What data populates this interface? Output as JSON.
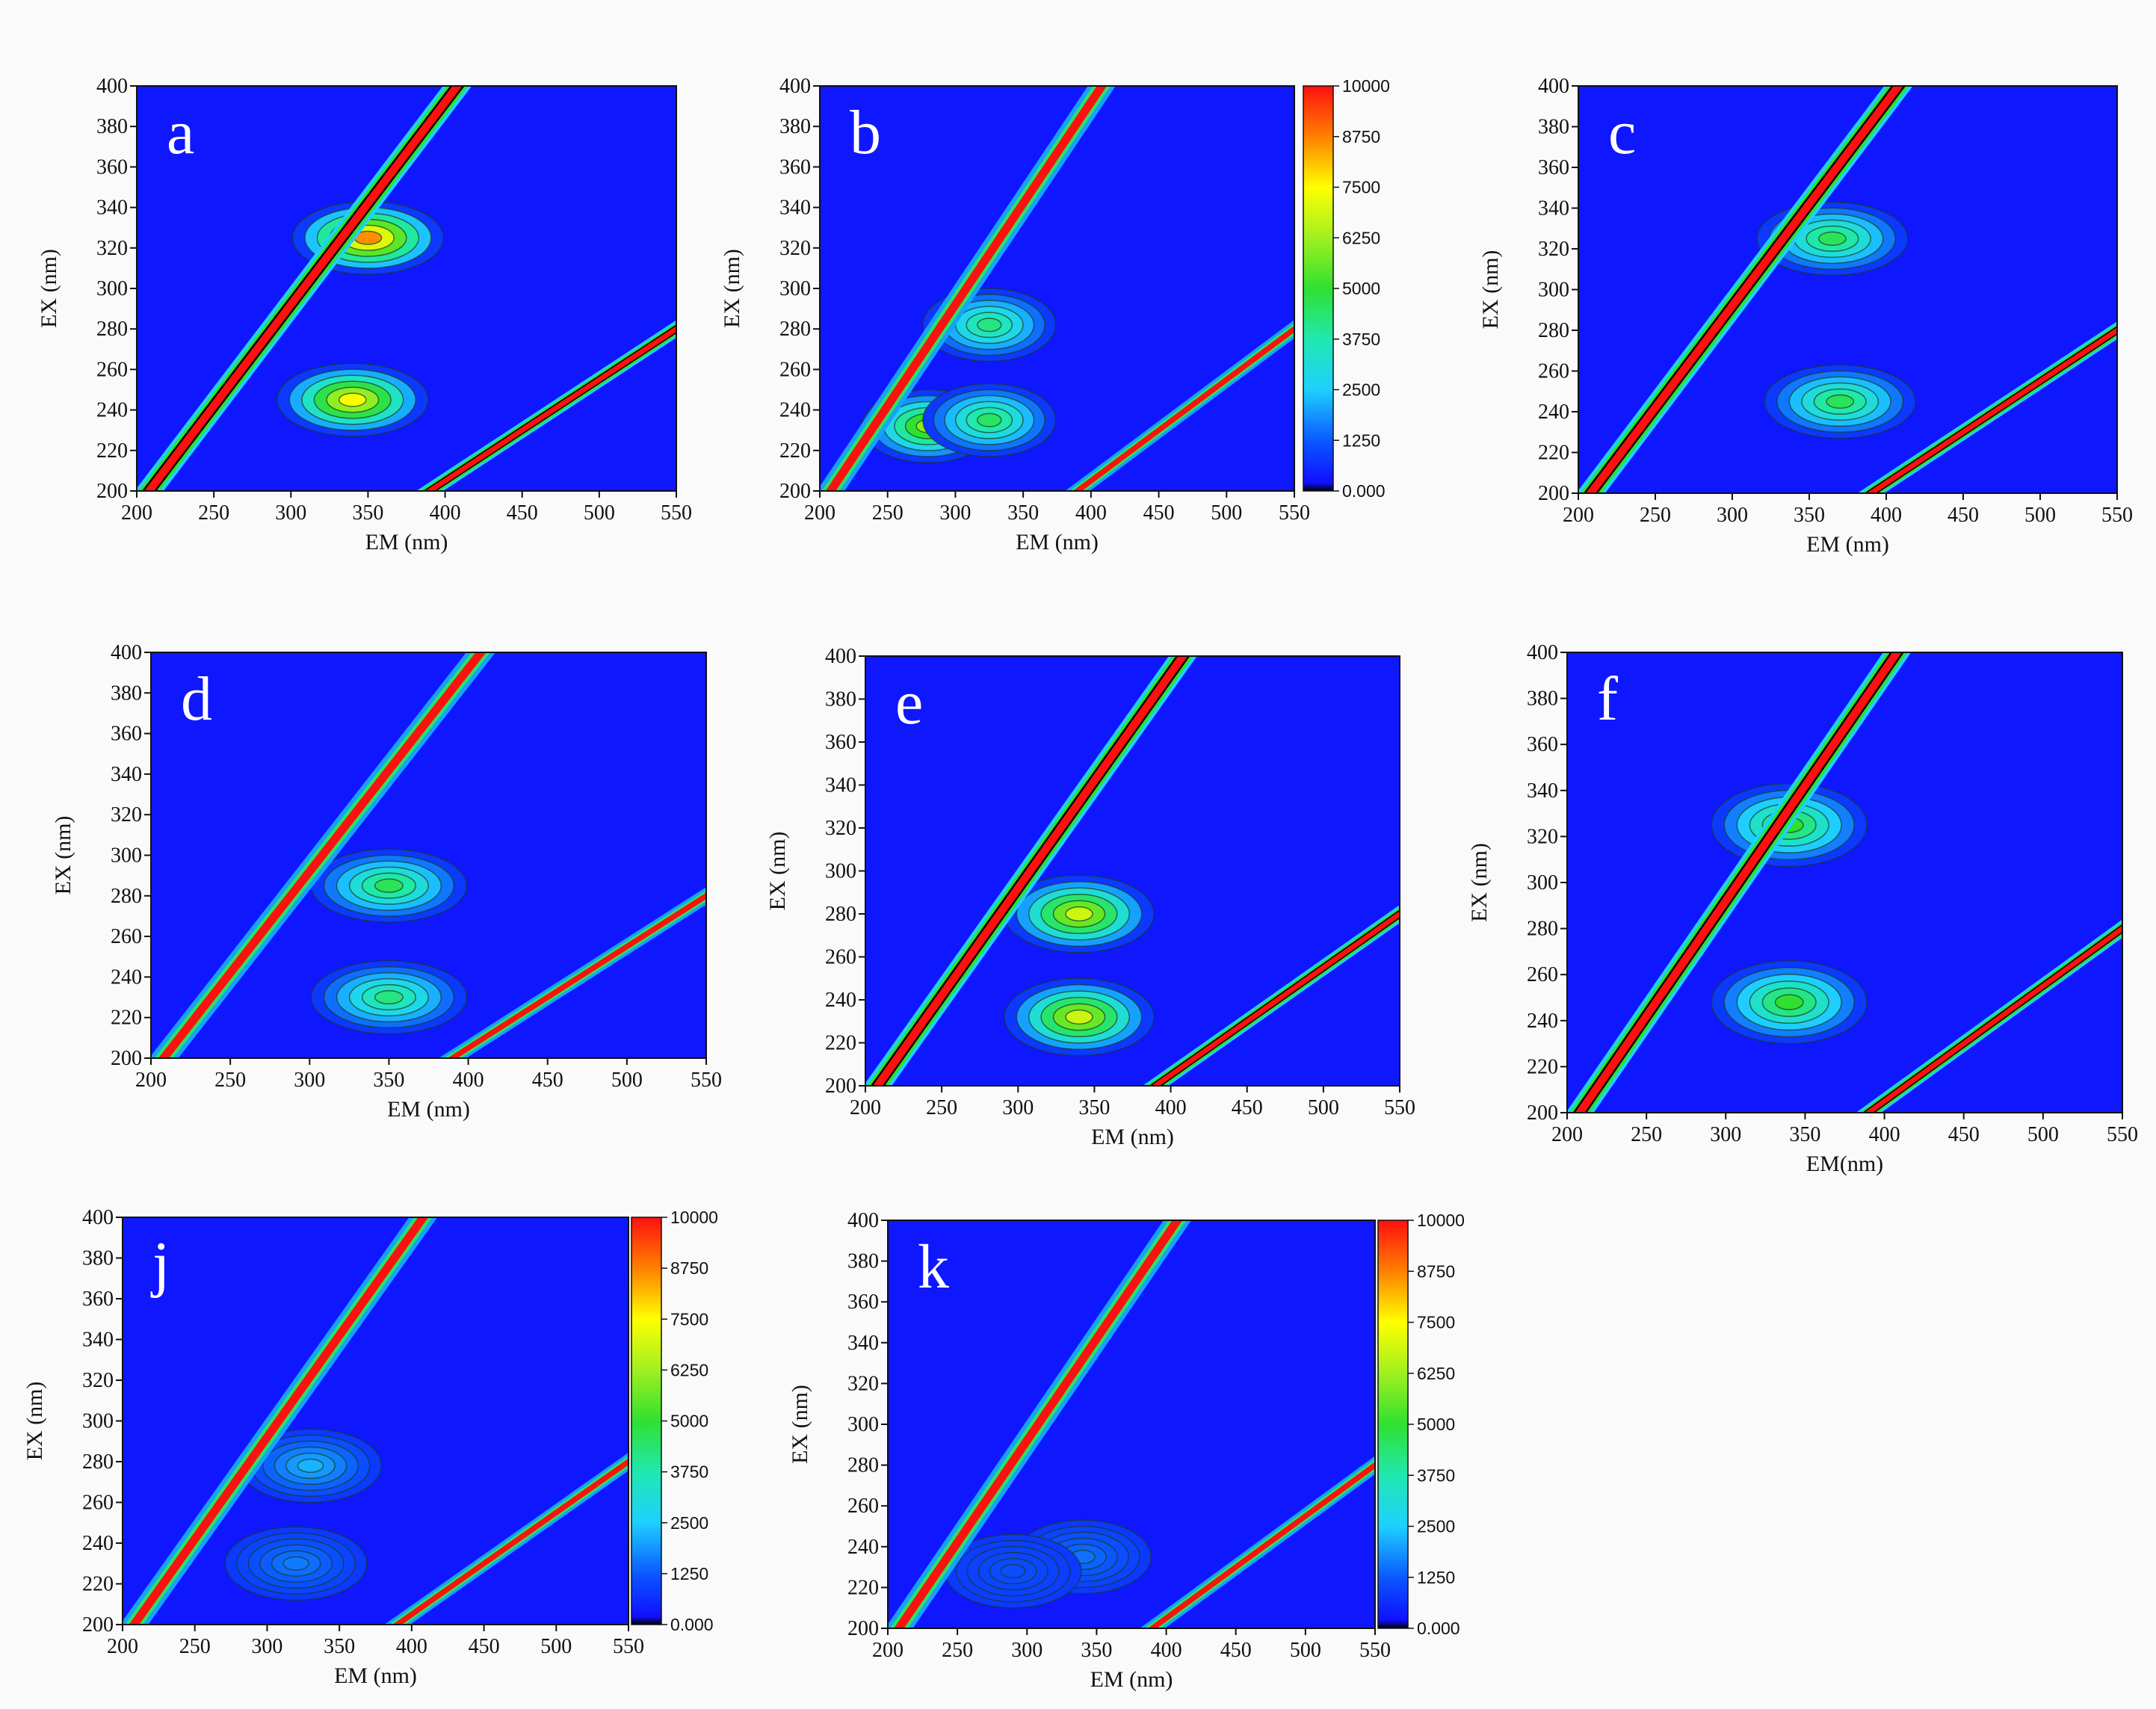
{
  "figure": {
    "x_ticks": [
      "200",
      "250",
      "300",
      "350",
      "400",
      "450",
      "500",
      "550"
    ],
    "y_ticks": [
      "200",
      "220",
      "240",
      "260",
      "280",
      "300",
      "320",
      "340",
      "360",
      "380",
      "400"
    ],
    "colorbar_ticks": [
      "0.000",
      "1250",
      "2500",
      "3750",
      "5000",
      "6250",
      "7500",
      "8750",
      "10000"
    ]
  },
  "chart_data": [
    {
      "type": "heatmap",
      "panel": "a",
      "title": "",
      "xlabel": "EM (nm)",
      "ylabel": "EX (nm)",
      "xlim": [
        200,
        550
      ],
      "ylim": [
        200,
        400
      ],
      "zlim": [
        0,
        10000
      ],
      "peaks": [
        {
          "em": 350,
          "ex": 325,
          "intensity": 8600
        },
        {
          "em": 340,
          "ex": 245,
          "intensity": 7400
        }
      ],
      "rayleigh_scatter": "strong",
      "colorbar": false
    },
    {
      "type": "heatmap",
      "panel": "b",
      "title": "",
      "xlabel": "EM (nm)",
      "ylabel": "EX (nm)",
      "xlim": [
        200,
        550
      ],
      "ylim": [
        200,
        400
      ],
      "zlim": [
        0,
        10000
      ],
      "peaks": [
        {
          "em": 325,
          "ex": 282,
          "intensity": 4200
        },
        {
          "em": 280,
          "ex": 232,
          "intensity": 6000
        },
        {
          "em": 325,
          "ex": 235,
          "intensity": 4500
        }
      ],
      "rayleigh_scatter": "moderate",
      "colorbar": true
    },
    {
      "type": "heatmap",
      "panel": "c",
      "title": "",
      "xlabel": "EM (nm)",
      "ylabel": "EX (nm)",
      "xlim": [
        200,
        550
      ],
      "ylim": [
        200,
        400
      ],
      "zlim": [
        0,
        10000
      ],
      "peaks": [
        {
          "em": 365,
          "ex": 325,
          "intensity": 4600
        },
        {
          "em": 370,
          "ex": 245,
          "intensity": 4600
        }
      ],
      "rayleigh_scatter": "strong",
      "colorbar": false
    },
    {
      "type": "heatmap",
      "panel": "d",
      "title": "",
      "xlabel": "EM (nm)",
      "ylabel": "EX (nm)",
      "xlim": [
        200,
        550
      ],
      "ylim": [
        200,
        400
      ],
      "zlim": [
        0,
        10000
      ],
      "peaks": [
        {
          "em": 350,
          "ex": 285,
          "intensity": 4600
        },
        {
          "em": 350,
          "ex": 230,
          "intensity": 4200
        }
      ],
      "rayleigh_scatter": "moderate",
      "colorbar": false
    },
    {
      "type": "heatmap",
      "panel": "e",
      "title": "",
      "xlabel": "EM (nm)",
      "ylabel": "EX (nm)",
      "xlim": [
        200,
        550
      ],
      "ylim": [
        200,
        400
      ],
      "zlim": [
        0,
        10000
      ],
      "peaks": [
        {
          "em": 340,
          "ex": 280,
          "intensity": 6800
        },
        {
          "em": 340,
          "ex": 232,
          "intensity": 6800
        }
      ],
      "rayleigh_scatter": "strong",
      "colorbar": false
    },
    {
      "type": "heatmap",
      "panel": "f",
      "title": "",
      "xlabel": "EM(nm)",
      "ylabel": "EX (nm)",
      "xlim": [
        200,
        550
      ],
      "ylim": [
        200,
        400
      ],
      "zlim": [
        0,
        10000
      ],
      "peaks": [
        {
          "em": 340,
          "ex": 325,
          "intensity": 5000
        },
        {
          "em": 340,
          "ex": 248,
          "intensity": 5000
        }
      ],
      "rayleigh_scatter": "strong",
      "colorbar": false
    },
    {
      "type": "heatmap",
      "panel": "j",
      "title": "",
      "xlabel": "EM (nm)",
      "ylabel": "EX (nm)",
      "xlim": [
        200,
        550
      ],
      "ylim": [
        200,
        400
      ],
      "zlim": [
        0,
        10000
      ],
      "peaks": [
        {
          "em": 330,
          "ex": 278,
          "intensity": 2200
        },
        {
          "em": 320,
          "ex": 230,
          "intensity": 1600
        }
      ],
      "rayleigh_scatter": "moderate",
      "colorbar": true
    },
    {
      "type": "heatmap",
      "panel": "k",
      "title": "",
      "xlabel": "EM (nm)",
      "ylabel": "EX (nm)",
      "xlim": [
        200,
        550
      ],
      "ylim": [
        200,
        400
      ],
      "zlim": [
        0,
        10000
      ],
      "peaks": [
        {
          "em": 340,
          "ex": 235,
          "intensity": 1500
        },
        {
          "em": 290,
          "ex": 228,
          "intensity": 1100
        }
      ],
      "rayleigh_scatter": "moderate",
      "colorbar": true
    }
  ]
}
